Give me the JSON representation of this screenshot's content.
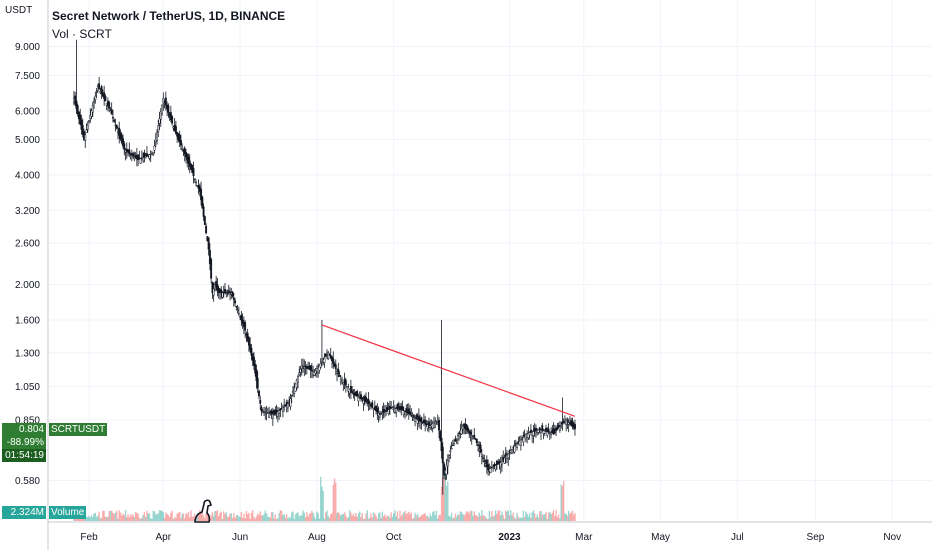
{
  "header": {
    "title": "Secret Network / TetherUS, 1D, BINANCE",
    "volume_label": "Vol · SCRT"
  },
  "axis": {
    "unit": "USDT",
    "y_ticks": [
      "9.000",
      "7.500",
      "6.000",
      "5.000",
      "4.000",
      "3.200",
      "2.600",
      "2.000",
      "1.600",
      "1.300",
      "1.050",
      "0.850",
      "0.580"
    ],
    "x_ticks": [
      "Feb",
      "Apr",
      "Jun",
      "Aug",
      "Oct",
      "2023",
      "Mar",
      "May",
      "Jul",
      "Sep",
      "Nov"
    ]
  },
  "badges": {
    "price": "0.804",
    "symbol": "SCRTUSDT",
    "change": "-88.99%",
    "countdown": "01:54:19",
    "volume_value": "2.324M",
    "volume_label": "Volume"
  },
  "colors": {
    "up": "#26a69a",
    "down": "#ef5350",
    "candle": "#131722",
    "trendline": "#f23645",
    "price_badge": "#2e7d32",
    "grid": "#f0f3fa"
  },
  "chart_data": {
    "type": "candlestick",
    "title": "Secret Network / TetherUS, 1D, BINANCE",
    "scale": "log",
    "ylabel": "USDT",
    "ylim": [
      0.5,
      10.0
    ],
    "xlim": [
      "2022-01-01",
      "2023-12-01"
    ],
    "grid": true,
    "close_series": {
      "dates": [
        "2022-01-20",
        "2022-01-28",
        "2022-02-08",
        "2022-02-18",
        "2022-03-01",
        "2022-03-12",
        "2022-03-24",
        "2022-04-01",
        "2022-04-10",
        "2022-04-20",
        "2022-04-30",
        "2022-05-07",
        "2022-05-10",
        "2022-05-12",
        "2022-05-15",
        "2022-05-25",
        "2022-06-05",
        "2022-06-12",
        "2022-06-18",
        "2022-06-28",
        "2022-07-10",
        "2022-07-20",
        "2022-07-30",
        "2022-08-10",
        "2022-08-20",
        "2022-08-30",
        "2022-09-10",
        "2022-09-20",
        "2022-09-30",
        "2022-10-10",
        "2022-10-20",
        "2022-10-30",
        "2022-11-05",
        "2022-11-08",
        "2022-11-10",
        "2022-11-15",
        "2022-11-25",
        "2022-12-05",
        "2022-12-15",
        "2022-12-25",
        "2023-01-05",
        "2023-01-15",
        "2023-01-25",
        "2023-02-05",
        "2023-02-15",
        "2023-02-22"
      ],
      "close": [
        6.5,
        5.0,
        7.0,
        6.0,
        4.7,
        4.4,
        4.6,
        6.5,
        5.3,
        4.4,
        3.6,
        2.5,
        1.9,
        2.0,
        1.9,
        1.9,
        1.5,
        1.2,
        0.9,
        0.88,
        0.95,
        1.2,
        1.15,
        1.3,
        1.1,
        1.0,
        0.95,
        0.88,
        0.92,
        0.9,
        0.85,
        0.82,
        0.85,
        0.7,
        0.6,
        0.7,
        0.82,
        0.75,
        0.62,
        0.65,
        0.72,
        0.78,
        0.8,
        0.78,
        0.85,
        0.804
      ]
    },
    "notable_highs": [
      {
        "date": "2022-01-22",
        "high": 9.4
      },
      {
        "date": "2022-08-05",
        "high": 1.6
      },
      {
        "date": "2022-11-08",
        "high": 1.6
      },
      {
        "date": "2023-02-12",
        "high": 0.98
      }
    ],
    "notable_lows": [
      {
        "date": "2022-11-09",
        "low": 0.53
      }
    ],
    "trendline": {
      "start": {
        "date": "2022-08-05",
        "price": 1.55
      },
      "end": {
        "date": "2023-02-22",
        "price": 0.87
      }
    },
    "last_price": 0.804,
    "change_percent": -88.99,
    "volume": {
      "last": "2.324M",
      "spike_dates": [
        "2022-08-05",
        "2022-08-15",
        "2022-11-09",
        "2022-11-12",
        "2023-02-12"
      ]
    }
  }
}
